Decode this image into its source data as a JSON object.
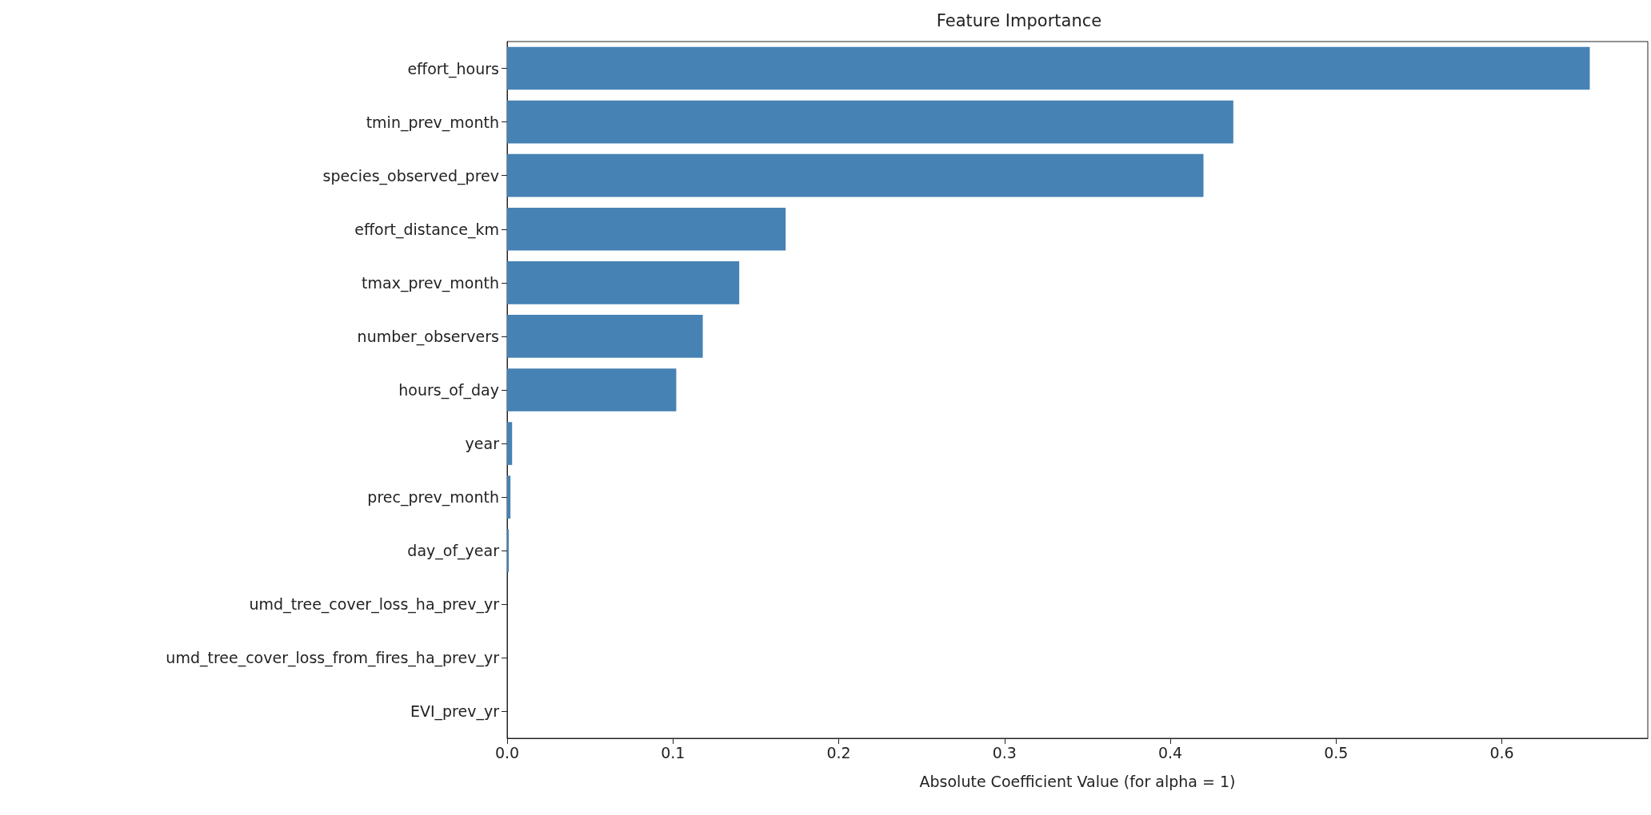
{
  "chart_data": {
    "type": "bar",
    "orientation": "horizontal",
    "title": "Feature Importance",
    "xlabel": "Absolute Coefficient Value (for alpha = 1)",
    "categories": [
      "effort_hours",
      "tmin_prev_month",
      "species_observed_prev",
      "effort_distance_km",
      "tmax_prev_month",
      "number_observers",
      "hours_of_day",
      "year",
      "prec_prev_month",
      "day_of_year",
      "umd_tree_cover_loss_ha_prev_yr",
      "umd_tree_cover_loss_from_fires_ha_prev_yr",
      "EVI_prev_yr"
    ],
    "values": [
      0.653,
      0.438,
      0.42,
      0.168,
      0.14,
      0.118,
      0.102,
      0.003,
      0.002,
      0.001,
      0,
      0,
      0
    ],
    "color": "#4682b4",
    "xlim": [
      0,
      0.688
    ],
    "xticks": [
      {
        "value": 0,
        "label": "0.0"
      },
      {
        "value": 0.1,
        "label": "0.1"
      },
      {
        "value": 0.2,
        "label": "0.2"
      },
      {
        "value": 0.3,
        "label": "0.3"
      },
      {
        "value": 0.4,
        "label": "0.4"
      },
      {
        "value": 0.5,
        "label": "0.5"
      },
      {
        "value": 0.6,
        "label": "0.6"
      }
    ],
    "grid": false
  }
}
